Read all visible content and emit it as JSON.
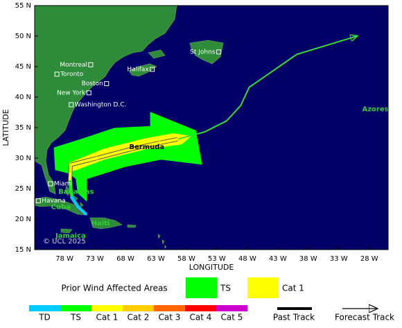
{
  "map": {
    "xlabel": "LONGITUDE",
    "ylabel": "LATITUDE",
    "xlim": [
      -82.9,
      -24.9
    ],
    "ylim": [
      15,
      55
    ],
    "xticks": [
      {
        "value": -78,
        "label": "78 W"
      },
      {
        "value": -73,
        "label": "73 W"
      },
      {
        "value": -68,
        "label": "68 W"
      },
      {
        "value": -63,
        "label": "63 W"
      },
      {
        "value": -58,
        "label": "58 W"
      },
      {
        "value": -53,
        "label": "53 W"
      },
      {
        "value": -48,
        "label": "48 W"
      },
      {
        "value": -43,
        "label": "43 W"
      },
      {
        "value": -38,
        "label": "38 W"
      },
      {
        "value": -33,
        "label": "33 W"
      },
      {
        "value": -28,
        "label": "28 W"
      }
    ],
    "yticks": [
      {
        "value": 55,
        "label": "55 N"
      },
      {
        "value": 50,
        "label": "50 N"
      },
      {
        "value": 45,
        "label": "45 N"
      },
      {
        "value": 40,
        "label": "40 N"
      },
      {
        "value": 35,
        "label": "35 N"
      },
      {
        "value": 30,
        "label": "30 N"
      },
      {
        "value": 25,
        "label": "25 N"
      },
      {
        "value": 20,
        "label": "20 N"
      },
      {
        "value": 15,
        "label": "15 N"
      }
    ],
    "cities": [
      {
        "name": "Montreal",
        "lon": -73.7,
        "lat": 45.3
      },
      {
        "name": "Toronto",
        "lon": -79.25,
        "lat": 43.75
      },
      {
        "name": "Boston",
        "lon": -71.1,
        "lat": 42.2
      },
      {
        "name": "New York",
        "lon": -74.0,
        "lat": 40.7
      },
      {
        "name": "Washington D.C.",
        "lon": -76.9,
        "lat": 38.75
      },
      {
        "name": "Halifax",
        "lon": -63.6,
        "lat": 44.55
      },
      {
        "name": "St Johns",
        "lon": -52.7,
        "lat": 47.4
      },
      {
        "name": "Miami",
        "lon": -80.3,
        "lat": 25.8
      },
      {
        "name": "Havana",
        "lon": -82.3,
        "lat": 23.0
      }
    ],
    "places": [
      {
        "name": "Bermuda",
        "lon": -64.5,
        "lat": 31.8,
        "color": "#000000"
      },
      {
        "name": "Bahamas",
        "lon": -76.1,
        "lat": 24.5,
        "color": "#33cc33"
      },
      {
        "name": "Cuba",
        "lon": -78.6,
        "lat": 22.0,
        "color": "#33cc33"
      },
      {
        "name": "Haiti",
        "lon": -72.1,
        "lat": 19.3,
        "color": "#33cc33"
      },
      {
        "name": "Jamaica",
        "lon": -77.0,
        "lat": 17.3,
        "color": "#33cc33"
      },
      {
        "name": "Azores",
        "lon": -27.0,
        "lat": 38.0,
        "color": "#33cc33"
      }
    ],
    "copyright": "© UCL 2025",
    "wind_areas": [
      {
        "name": "TS",
        "color": "#00ff00",
        "lon": [
          -79.7,
          -74.9,
          -69.8,
          -63.9,
          -63.9,
          -56.5,
          -55.5,
          -62.2,
          -68.1,
          -74.4,
          -74.4,
          -75.8,
          -76.1,
          -77.2,
          -79.5
        ],
        "lat": [
          31.7,
          33.2,
          34.9,
          35.2,
          37.5,
          34.5,
          29.0,
          29.8,
          28.6,
          26.6,
          23.0,
          24.3,
          26.6,
          27.5,
          28.1
        ]
      },
      {
        "name": "Cat 1",
        "color": "#ffff00",
        "lon": [
          -77.2,
          -71.5,
          -64.7,
          -60.2,
          -57.3,
          -58.8,
          -64.7,
          -71.5,
          -76.1,
          -77.2
        ],
        "lat": [
          29.2,
          31.5,
          33.2,
          34.0,
          33.6,
          32.3,
          31.5,
          29.8,
          28.1,
          27.8
        ]
      }
    ],
    "past_track": {
      "lon": [
        -74.6,
        -75.8,
        -76.75,
        -77.1,
        -77.0,
        -72.7,
        -67.0,
        -62.4,
        -59.4
      ],
      "lat": [
        20.9,
        22.0,
        23.5,
        26.1,
        28.9,
        30.0,
        31.5,
        32.5,
        33.1
      ],
      "colors": [
        "#00ccff",
        "#00ccff",
        "#00ccff",
        "#00ff00",
        "#ffff00",
        "#ffff00",
        "#ffff00",
        "#ffff00",
        "#ffff00"
      ]
    },
    "forecast_track": {
      "color": "#33dd33",
      "lon": [
        -59.4,
        -55.0,
        -51.4,
        -49.1,
        -47.7,
        -39.9,
        -30.0
      ],
      "lat": [
        33.1,
        34.3,
        36.1,
        38.6,
        41.6,
        47.0,
        50.0
      ]
    }
  },
  "legend": {
    "wind_title": "Prior Wind Affected Areas",
    "scale": [
      {
        "name": "TD",
        "color": "#00ccff"
      },
      {
        "name": "TS",
        "color": "#00ff00"
      },
      {
        "name": "Cat 1",
        "color": "#ffff00"
      },
      {
        "name": "Cat 2",
        "color": "#ffcc00"
      },
      {
        "name": "Cat 3",
        "color": "#ff6600"
      },
      {
        "name": "Cat 4",
        "color": "#ff0000"
      },
      {
        "name": "Cat 5",
        "color": "#cc00cc"
      }
    ],
    "past_track": "Past Track",
    "forecast_track": "Forecast Track"
  }
}
